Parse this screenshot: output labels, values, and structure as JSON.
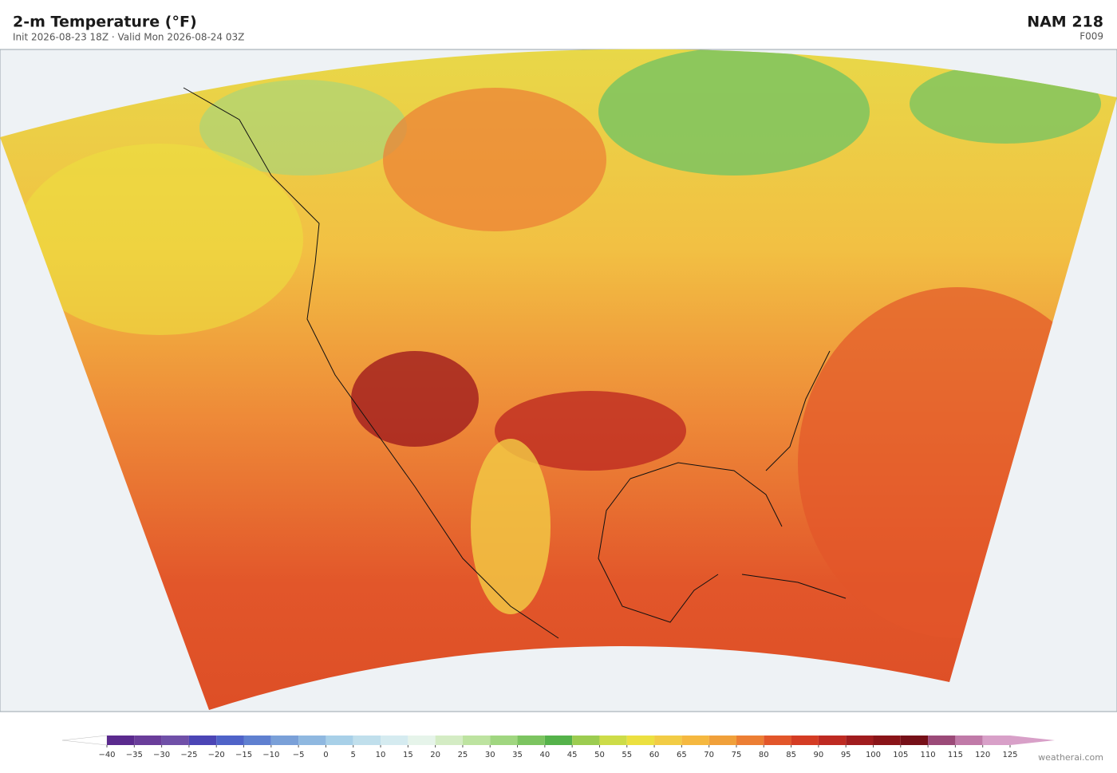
{
  "header": {
    "title": "2-m Temperature  (°F)",
    "subtitle": "Init 2026-08-23 18Z  ·  Valid Mon 2026-08-24 03Z",
    "model": "NAM  218",
    "forecast_hour": "F009"
  },
  "colorbar": {
    "ticks": [
      {
        "value": -40,
        "label": "−40"
      },
      {
        "value": -35,
        "label": "−35"
      },
      {
        "value": -30,
        "label": "−30"
      },
      {
        "value": -25,
        "label": "−25"
      },
      {
        "value": -20,
        "label": "−20"
      },
      {
        "value": -15,
        "label": "−15"
      },
      {
        "value": -10,
        "label": "−10"
      },
      {
        "value": -5,
        "label": "−5"
      },
      0,
      5,
      10,
      15,
      20,
      25,
      30,
      35,
      40,
      45,
      50,
      55,
      60,
      65,
      70,
      75,
      80,
      85,
      90,
      95,
      100,
      105,
      110,
      115,
      120,
      125
    ],
    "colors": [
      "#5b2a8e",
      "#6a3d9a",
      "#7050a8",
      "#4b45b5",
      "#4f63c8",
      "#5f80d0",
      "#7aa0d8",
      "#8fb8e0",
      "#a8d0e8",
      "#c0dfec",
      "#d5ebf0",
      "#e6f4ea",
      "#d4ecc4",
      "#bde3a0",
      "#a0d680",
      "#7cc460",
      "#55b24a",
      "#9ccc50",
      "#cddc48",
      "#ece040",
      "#f2cc45",
      "#f5b840",
      "#f0a03a",
      "#ec7e34",
      "#e2562a",
      "#d43c24",
      "#be2a22",
      "#a01c1e",
      "#8a1418",
      "#761018",
      "#9b4a78",
      "#c07aa8",
      "#d8a0c8"
    ],
    "extend_colors": [
      "#ffffff",
      "#d8a0c8"
    ]
  },
  "footer": {
    "credit": "weatherai.com"
  }
}
